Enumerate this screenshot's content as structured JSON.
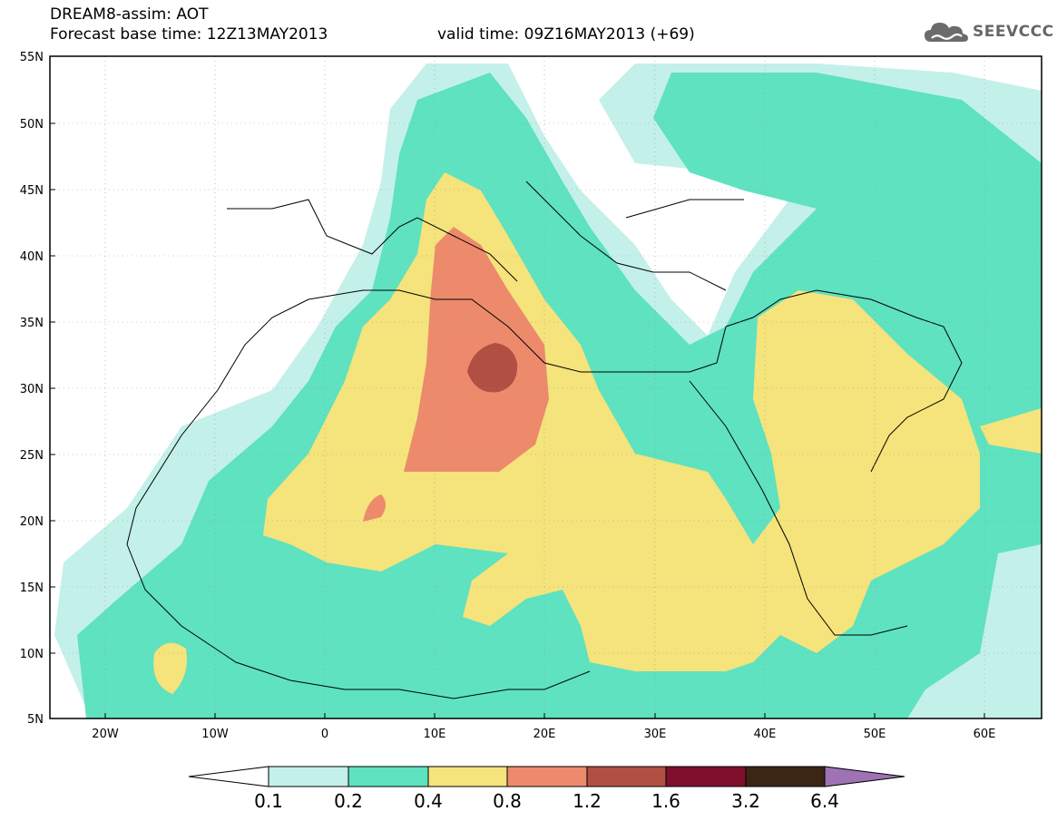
{
  "header": {
    "line1": "DREAM8-assim: AOT",
    "line2": "Forecast base time: 12Z13MAY2013",
    "valid": "valid time: 09Z16MAY2013 (+69)",
    "logo_text": "SEEVCCC",
    "logo_icon": "cloud-icon"
  },
  "map": {
    "lat_labels": [
      "55N",
      "50N",
      "45N",
      "40N",
      "35N",
      "30N",
      "25N",
      "20N",
      "15N",
      "10N",
      "5N"
    ],
    "lon_labels": [
      "20W",
      "10W",
      "0",
      "10E",
      "20E",
      "30E",
      "40E",
      "50E",
      "60E"
    ],
    "lon_range": [
      -25,
      65
    ],
    "lat_range": [
      5,
      55
    ],
    "grid": true
  },
  "legend": {
    "values": [
      "0.1",
      "0.2",
      "0.4",
      "0.8",
      "1.2",
      "1.6",
      "3.2",
      "6.4"
    ],
    "colors": {
      "lt01": "#ffffff",
      "b1": "#c4f0ea",
      "b2": "#5ee2c0",
      "b3": "#f5e37b",
      "b4": "#ec8a6b",
      "b5": "#b24f43",
      "b6": "#7f0f2d",
      "b7": "#3b2616",
      "gt64": "#9e72b4"
    }
  }
}
